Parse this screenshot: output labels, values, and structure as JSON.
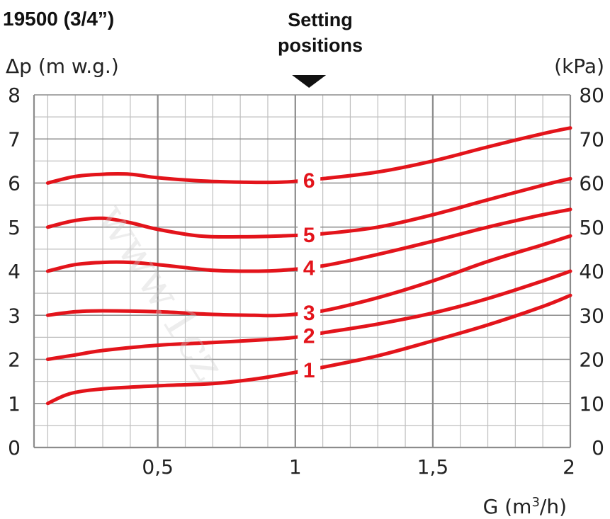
{
  "header": {
    "title": "19500 (3/4”)",
    "setting_line1": "Setting",
    "setting_line2": "positions"
  },
  "watermark": "www.1cz",
  "colors": {
    "curve": "#e3141b",
    "grid_minor": "#bfbfbf",
    "grid_major": "#8c8c8c",
    "arrow": "#111111"
  },
  "chart_data": {
    "type": "line",
    "title": "19500 (3/4”)",
    "ylabel": "Δp (m w.g.)",
    "ylabel_right": "(kPa)",
    "xlabel_prefix": "G (m",
    "xlabel_sup": "3",
    "xlabel_suffix": "/h)",
    "xlim": [
      0.05,
      2
    ],
    "ylim": [
      0,
      8
    ],
    "ylim_right": [
      0,
      80
    ],
    "setting_marker_x": 1.05,
    "x_ticks": [
      {
        "value": 0.5,
        "label": "0,5"
      },
      {
        "value": 1,
        "label": "1"
      },
      {
        "value": 1.5,
        "label": "1,5"
      },
      {
        "value": 2,
        "label": "2"
      }
    ],
    "y_ticks_left": [
      "0",
      "1",
      "2",
      "3",
      "4",
      "5",
      "6",
      "7",
      "8"
    ],
    "y_ticks_right": [
      "0",
      "10",
      "20",
      "30",
      "40",
      "50",
      "60",
      "70",
      "80"
    ],
    "grid": true,
    "legend": "inline labels",
    "series": [
      {
        "name": "1",
        "label_x": 1.05,
        "x": [
          0.1,
          0.15,
          0.2,
          0.3,
          0.5,
          0.7,
          0.85,
          0.95,
          1.1,
          1.3,
          1.5,
          1.7,
          1.9,
          2.0
        ],
        "y": [
          1.0,
          1.15,
          1.25,
          1.33,
          1.4,
          1.45,
          1.55,
          1.65,
          1.82,
          2.08,
          2.42,
          2.78,
          3.2,
          3.45
        ]
      },
      {
        "name": "2",
        "label_x": 1.05,
        "x": [
          0.1,
          0.2,
          0.3,
          0.5,
          0.7,
          0.9,
          1.0,
          1.1,
          1.3,
          1.5,
          1.7,
          1.9,
          2.0
        ],
        "y": [
          2.0,
          2.1,
          2.2,
          2.32,
          2.38,
          2.45,
          2.5,
          2.6,
          2.8,
          3.05,
          3.38,
          3.78,
          4.0
        ]
      },
      {
        "name": "3",
        "label_x": 1.05,
        "x": [
          0.1,
          0.2,
          0.3,
          0.5,
          0.7,
          0.85,
          0.95,
          1.1,
          1.3,
          1.5,
          1.7,
          1.9,
          2.0
        ],
        "y": [
          3.0,
          3.08,
          3.1,
          3.08,
          3.02,
          3.0,
          3.0,
          3.1,
          3.4,
          3.78,
          4.22,
          4.6,
          4.8
        ]
      },
      {
        "name": "4",
        "label_x": 1.05,
        "x": [
          0.1,
          0.2,
          0.3,
          0.4,
          0.5,
          0.7,
          0.85,
          0.95,
          1.1,
          1.3,
          1.5,
          1.7,
          1.9,
          2.0
        ],
        "y": [
          4.0,
          4.15,
          4.2,
          4.2,
          4.15,
          4.02,
          4.0,
          4.02,
          4.12,
          4.38,
          4.68,
          5.0,
          5.28,
          5.4
        ]
      },
      {
        "name": "5",
        "label_x": 1.05,
        "x": [
          0.1,
          0.2,
          0.3,
          0.4,
          0.5,
          0.65,
          0.8,
          0.95,
          1.1,
          1.3,
          1.5,
          1.7,
          1.9,
          2.0
        ],
        "y": [
          5.0,
          5.15,
          5.2,
          5.1,
          4.95,
          4.8,
          4.78,
          4.8,
          4.85,
          5.0,
          5.28,
          5.62,
          5.95,
          6.1
        ]
      },
      {
        "name": "6",
        "label_x": 1.05,
        "x": [
          0.1,
          0.2,
          0.3,
          0.4,
          0.5,
          0.65,
          0.8,
          0.95,
          1.1,
          1.3,
          1.5,
          1.7,
          1.9,
          2.0
        ],
        "y": [
          6.0,
          6.15,
          6.2,
          6.2,
          6.12,
          6.05,
          6.02,
          6.02,
          6.1,
          6.25,
          6.5,
          6.82,
          7.12,
          7.25
        ]
      }
    ]
  }
}
